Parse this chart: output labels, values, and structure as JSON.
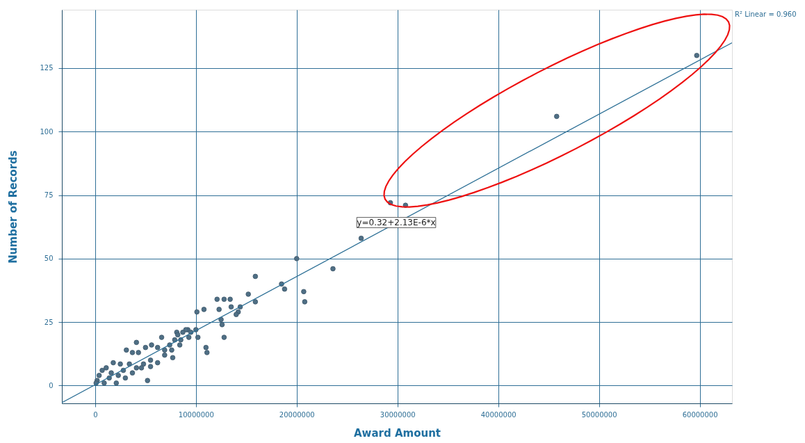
{
  "chart_data": {
    "type": "scatter",
    "xlabel": "Award Amount",
    "ylabel": "Number of Records",
    "xlim": [
      -3300000,
      63200000
    ],
    "ylim": [
      -7,
      148
    ],
    "xticks": [
      0,
      10000000,
      20000000,
      30000000,
      40000000,
      50000000,
      60000000
    ],
    "yticks": [
      0,
      25,
      50,
      75,
      100,
      125
    ],
    "grid": true,
    "marker": "circle",
    "annotations": [
      "y=0.32+2.13E-6*x",
      "R² Linear = 0.960"
    ],
    "series": [
      {
        "color": "#4f6f85",
        "x": [
          59700000,
          45800000,
          30800000,
          29300000,
          26400000,
          23600000,
          20000000,
          18800000,
          18500000,
          20700000,
          20800000,
          15900000,
          15900000,
          15200000,
          14400000,
          14200000,
          14000000,
          13400000,
          12800000,
          12100000,
          12300000,
          12500000,
          12600000,
          12800000,
          10800000,
          10100000,
          11000000,
          11100000,
          10000000,
          13500000,
          9200000,
          9000000,
          8100000,
          8200000,
          8500000,
          8400000,
          9300000,
          9500000,
          10200000,
          6600000,
          7900000,
          7400000,
          7700000,
          6900000,
          6200000,
          5600000,
          5000000,
          4100000,
          3100000,
          3700000,
          5200000,
          4300000,
          6200000,
          5500000,
          4800000,
          4100000,
          3400000,
          2500000,
          1800000,
          1100000,
          700000,
          400000,
          200000,
          100000,
          1400000,
          2300000,
          3000000,
          3700000,
          2100000,
          900000,
          4600000,
          5500000,
          2800000,
          1600000,
          6900000,
          7600000,
          8700000
        ],
        "values": [
          130,
          106,
          71,
          72,
          58,
          46,
          50,
          38,
          40,
          37,
          33,
          43,
          33,
          36,
          31,
          29,
          28,
          34,
          34,
          34,
          30,
          26,
          24,
          19,
          30,
          29,
          15,
          13,
          22,
          31,
          22,
          22,
          21,
          20,
          18,
          16,
          19,
          21,
          19,
          19,
          18,
          16,
          11,
          12,
          15,
          16,
          15,
          17,
          14,
          13,
          2,
          13,
          9,
          10,
          8.5,
          7,
          8.5,
          8.5,
          9,
          7,
          6,
          4,
          2,
          1,
          3,
          4,
          3,
          5,
          1,
          1,
          7,
          7.5,
          6,
          5,
          14,
          14,
          21
        ]
      },
      {
        "type": "line",
        "marker": "none",
        "color": "#2f7197",
        "x": [
          -3300000,
          63200000
        ],
        "values": [
          -6.7,
          135
        ]
      }
    ]
  }
}
